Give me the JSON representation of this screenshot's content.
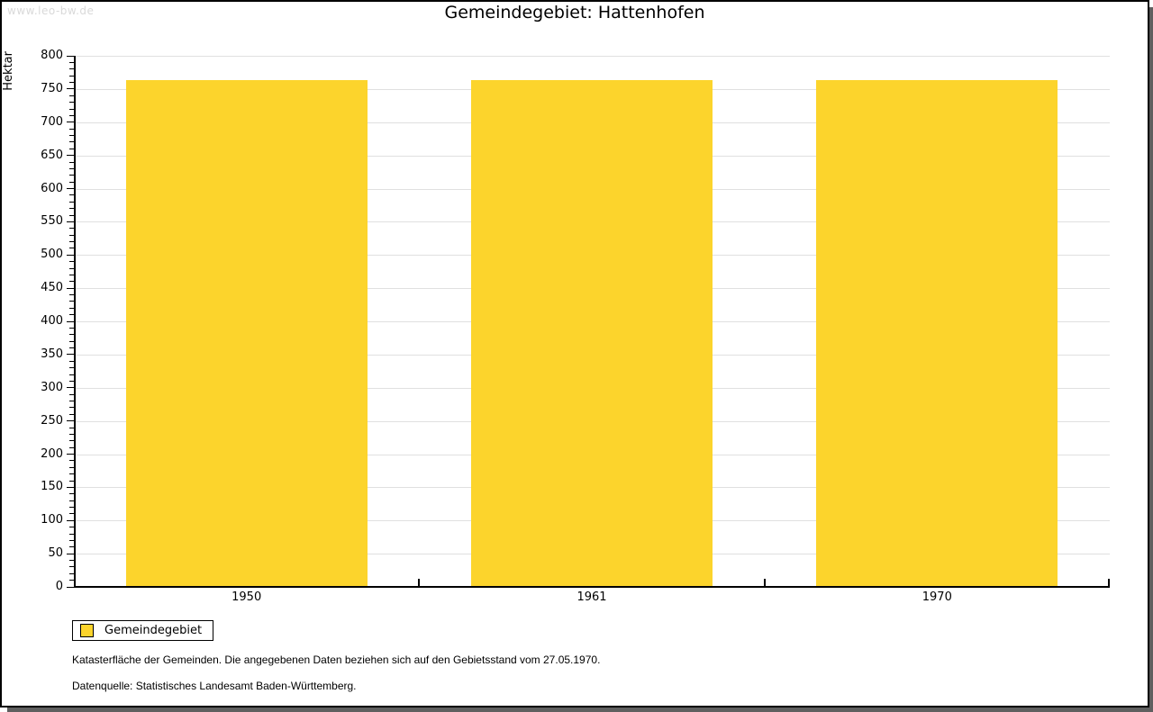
{
  "watermark": "www.leo-bw.de",
  "chart_data": {
    "type": "bar",
    "title": "Gemeindegebiet: Hattenhofen",
    "ylabel": "Hektar",
    "xlabel": "",
    "categories": [
      "1950",
      "1961",
      "1970"
    ],
    "series": [
      {
        "name": "Gemeindegebiet",
        "values": [
          763,
          763,
          763
        ]
      }
    ],
    "ylim": [
      0,
      800
    ],
    "ytick_step": 50,
    "ytick_minor_step": 10,
    "grid": true,
    "legend_position": "bottom-left",
    "colors": {
      "bar": "#FCD42C",
      "grid": "#E0E0E0",
      "axis": "#000000"
    }
  },
  "legend": {
    "items": [
      {
        "label": "Gemeindegebiet",
        "color": "#FCD42C"
      }
    ]
  },
  "footnotes": [
    "Katasterfläche der Gemeinden. Die angegebenen Daten beziehen sich auf den Gebietsstand vom 27.05.1970.",
    "Datenquelle: Statistisches Landesamt Baden-Württemberg."
  ]
}
